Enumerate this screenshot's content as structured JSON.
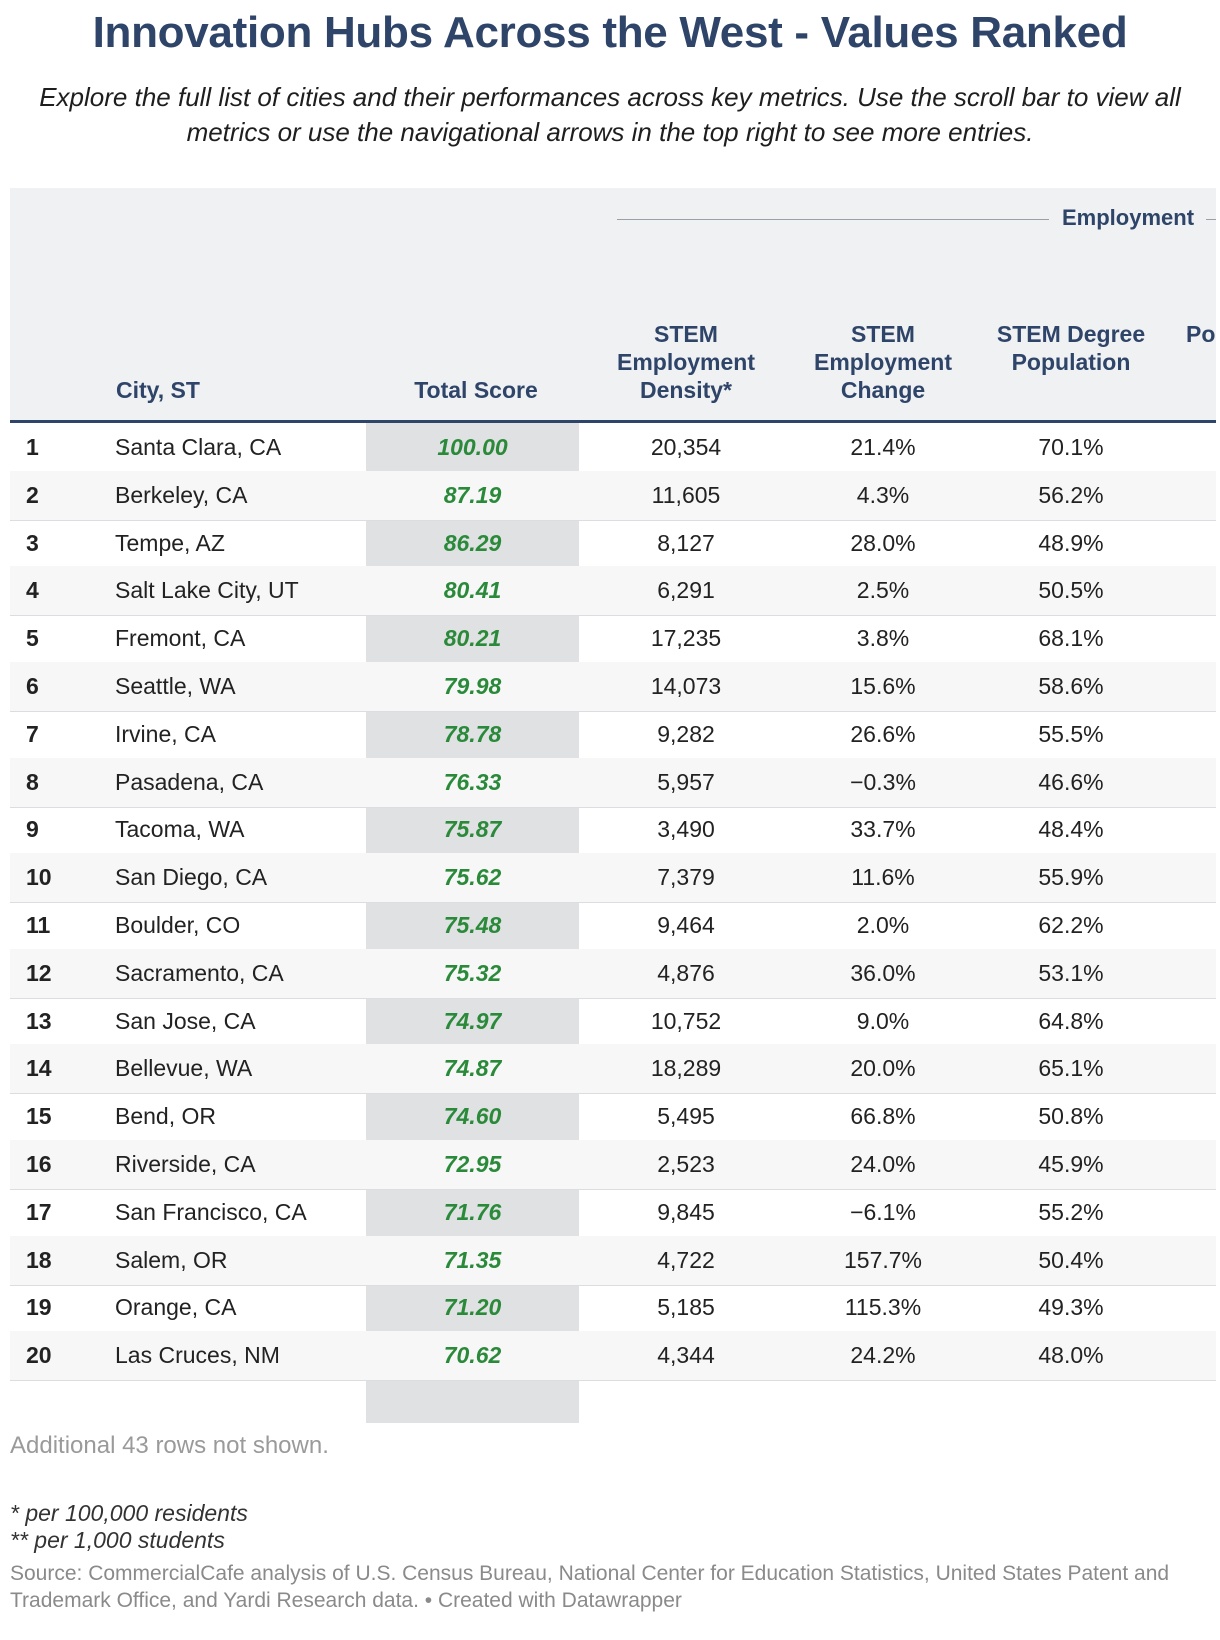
{
  "title": "Innovation Hubs Across the West - Values Ranked",
  "subtitle": "Explore the full list of cities and their performances across key metrics. Use the scroll bar to view all metrics or use the navigational arrows in the top right to see more entries.",
  "header": {
    "group": "Employment",
    "columns": {
      "city": "City, ST",
      "total": "Total Score",
      "c1": "STEM Employment Density*",
      "c2": "STEM Employment Change",
      "c3": "STEM Degree Population",
      "c4": "Po"
    }
  },
  "colors": {
    "title": "#2e4468",
    "score": "#2a8a3a",
    "header_bg": "#f0f1f3",
    "score_bg": "#e0e1e3"
  },
  "chart_data": {
    "type": "table",
    "columns": [
      "#",
      "City, ST",
      "Total Score",
      "STEM Employment Density*",
      "STEM Employment Change",
      "STEM Degree Population"
    ],
    "rows": [
      {
        "rank": "1",
        "city": "Santa Clara, CA",
        "score": "100.00",
        "density": "20,354",
        "change": "21.4%",
        "degree": "70.1%"
      },
      {
        "rank": "2",
        "city": "Berkeley, CA",
        "score": "87.19",
        "density": "11,605",
        "change": "4.3%",
        "degree": "56.2%"
      },
      {
        "rank": "3",
        "city": "Tempe, AZ",
        "score": "86.29",
        "density": "8,127",
        "change": "28.0%",
        "degree": "48.9%"
      },
      {
        "rank": "4",
        "city": "Salt Lake City, UT",
        "score": "80.41",
        "density": "6,291",
        "change": "2.5%",
        "degree": "50.5%"
      },
      {
        "rank": "5",
        "city": "Fremont, CA",
        "score": "80.21",
        "density": "17,235",
        "change": "3.8%",
        "degree": "68.1%"
      },
      {
        "rank": "6",
        "city": "Seattle, WA",
        "score": "79.98",
        "density": "14,073",
        "change": "15.6%",
        "degree": "58.6%"
      },
      {
        "rank": "7",
        "city": "Irvine, CA",
        "score": "78.78",
        "density": "9,282",
        "change": "26.6%",
        "degree": "55.5%"
      },
      {
        "rank": "8",
        "city": "Pasadena, CA",
        "score": "76.33",
        "density": "5,957",
        "change": "−0.3%",
        "degree": "46.6%"
      },
      {
        "rank": "9",
        "city": "Tacoma, WA",
        "score": "75.87",
        "density": "3,490",
        "change": "33.7%",
        "degree": "48.4%"
      },
      {
        "rank": "10",
        "city": "San Diego, CA",
        "score": "75.62",
        "density": "7,379",
        "change": "11.6%",
        "degree": "55.9%"
      },
      {
        "rank": "11",
        "city": "Boulder, CO",
        "score": "75.48",
        "density": "9,464",
        "change": "2.0%",
        "degree": "62.2%"
      },
      {
        "rank": "12",
        "city": "Sacramento, CA",
        "score": "75.32",
        "density": "4,876",
        "change": "36.0%",
        "degree": "53.1%"
      },
      {
        "rank": "13",
        "city": "San Jose, CA",
        "score": "74.97",
        "density": "10,752",
        "change": "9.0%",
        "degree": "64.8%"
      },
      {
        "rank": "14",
        "city": "Bellevue, WA",
        "score": "74.87",
        "density": "18,289",
        "change": "20.0%",
        "degree": "65.1%"
      },
      {
        "rank": "15",
        "city": "Bend, OR",
        "score": "74.60",
        "density": "5,495",
        "change": "66.8%",
        "degree": "50.8%"
      },
      {
        "rank": "16",
        "city": "Riverside, CA",
        "score": "72.95",
        "density": "2,523",
        "change": "24.0%",
        "degree": "45.9%"
      },
      {
        "rank": "17",
        "city": "San Francisco, CA",
        "score": "71.76",
        "density": "9,845",
        "change": "−6.1%",
        "degree": "55.2%"
      },
      {
        "rank": "18",
        "city": "Salem, OR",
        "score": "71.35",
        "density": "4,722",
        "change": "157.7%",
        "degree": "50.4%"
      },
      {
        "rank": "19",
        "city": "Orange, CA",
        "score": "71.20",
        "density": "5,185",
        "change": "115.3%",
        "degree": "49.3%"
      },
      {
        "rank": "20",
        "city": "Las Cruces, NM",
        "score": "70.62",
        "density": "4,344",
        "change": "24.2%",
        "degree": "48.0%"
      }
    ]
  },
  "footer": {
    "more_rows": "Additional 43 rows not shown.",
    "footnote1": "* per 100,000 residents",
    "footnote2": "** per 1,000 students",
    "source": "Source: CommercialCafe analysis of U.S. Census Bureau, National Center for Education Statistics, United States Patent and Trademark Office, and Yardi Research data. • Created with Datawrapper"
  }
}
